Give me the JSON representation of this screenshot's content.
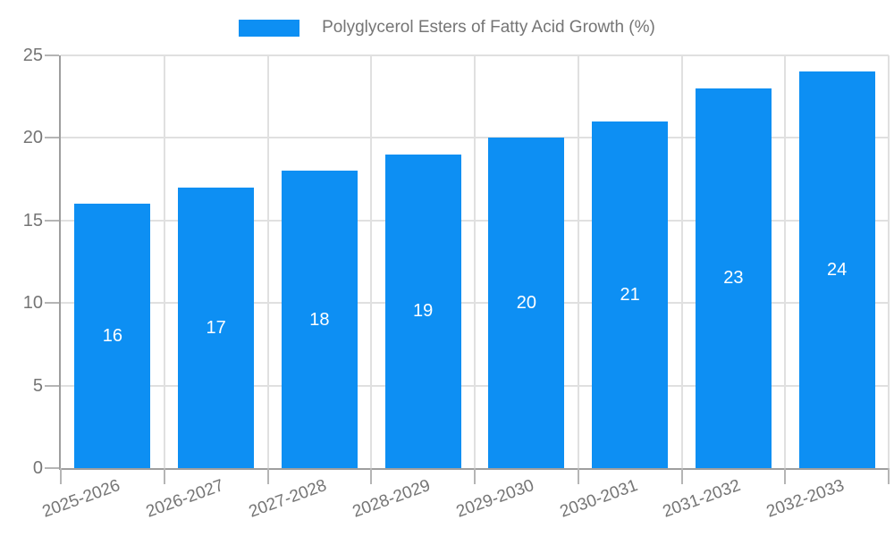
{
  "legend": {
    "label": "Polyglycerol Esters of Fatty Acid Growth (%)"
  },
  "chart_data": {
    "type": "bar",
    "title": "Polyglycerol Esters of Fatty Acid Growth (%)",
    "categories": [
      "2025-2026",
      "2026-2027",
      "2027-2028",
      "2028-2029",
      "2029-2030",
      "2030-2031",
      "2031-2032",
      "2032-2033"
    ],
    "values": [
      16,
      17,
      18,
      19,
      20,
      21,
      23,
      24
    ],
    "value_labels": [
      "16",
      "17",
      "18",
      "19",
      "20",
      "21",
      "23",
      "24"
    ],
    "xlabel": "",
    "ylabel": "",
    "ylim": [
      0,
      25
    ],
    "yticks": [
      0,
      5,
      10,
      15,
      20,
      25
    ],
    "grid": true,
    "legend_position": "top",
    "colors": {
      "bar": "#0d8ff3",
      "value_label": "#ffffff",
      "axis_text": "#757575",
      "axis_line": "#9e9e9e",
      "gridline": "#e0e0e0",
      "tick": "#b5b5b5",
      "background": "#ffffff"
    }
  }
}
